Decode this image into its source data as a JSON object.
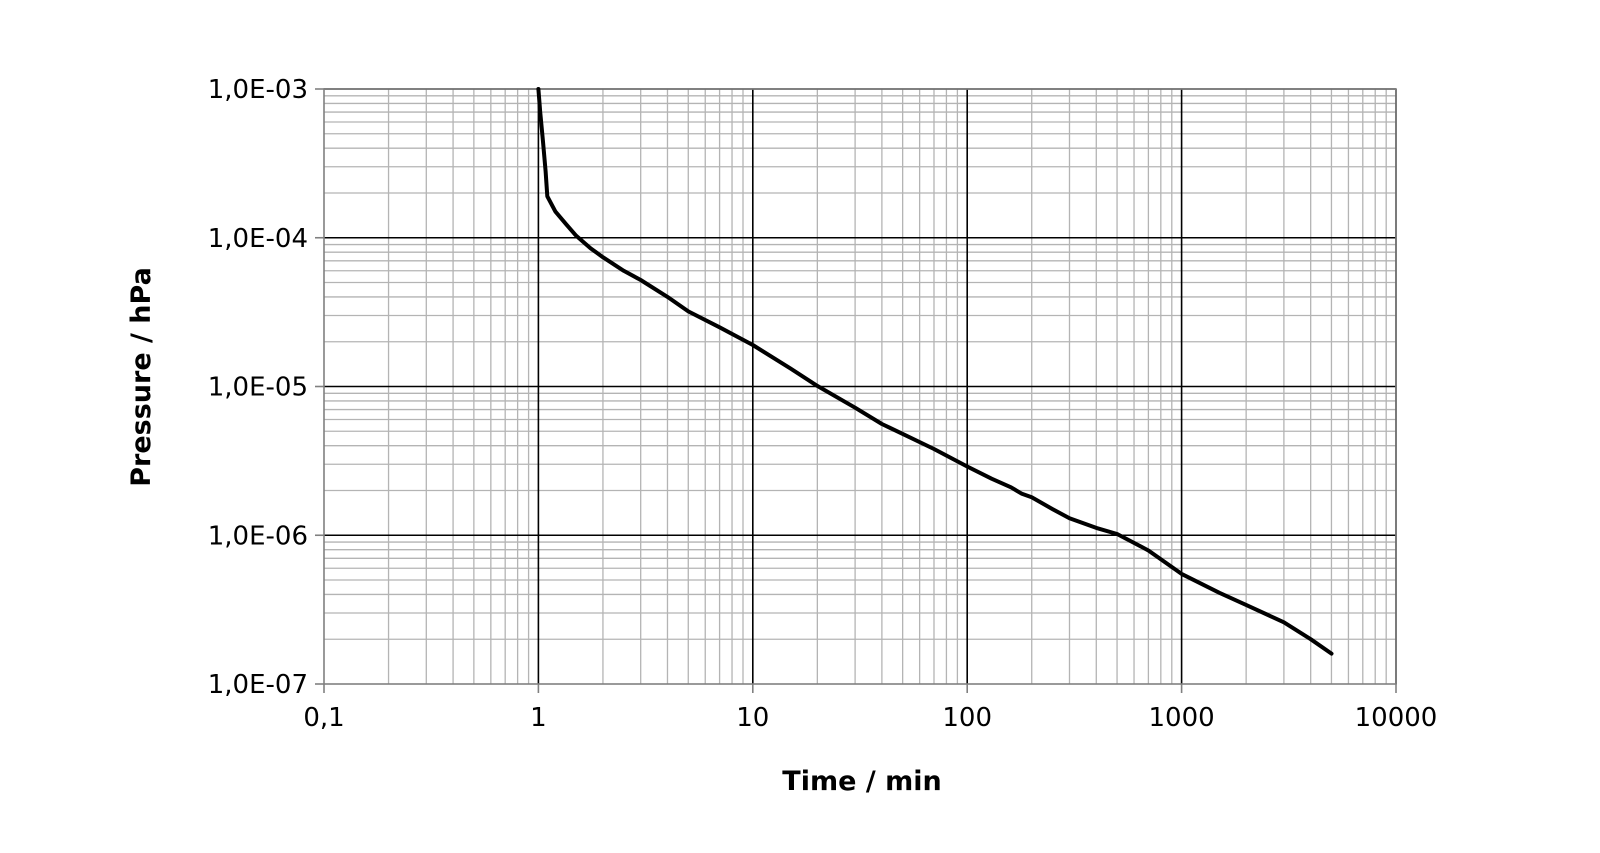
{
  "chart_data": {
    "type": "line",
    "title": "",
    "xlabel": "Time / min",
    "ylabel": "Pressure / hPa",
    "x_scale": "log",
    "y_scale": "log",
    "xlim": [
      0.1,
      10000
    ],
    "ylim": [
      1e-07,
      0.001
    ],
    "x_tick_values": [
      0.1,
      1,
      10,
      100,
      1000,
      10000
    ],
    "x_tick_labels": [
      "0,1",
      "1",
      "10",
      "100",
      "1000",
      "10000"
    ],
    "y_tick_values": [
      0.001,
      0.0001,
      1e-05,
      1e-06,
      1e-07
    ],
    "y_tick_labels": [
      "1,0E-03",
      "1,0E-04",
      "1,0E-05",
      "1,0E-06",
      "1,0E-07"
    ],
    "grid": {
      "major": true,
      "minor": true
    },
    "legend": "none",
    "colors": {
      "line": "#000000",
      "major_grid": "#000000",
      "minor_grid": "#b4b4b4",
      "axis": "#808080"
    },
    "series": [
      {
        "x": [
          1.0,
          1.02,
          1.05,
          1.08,
          1.1,
          1.2,
          1.35,
          1.5,
          1.75,
          2.0,
          2.5,
          3,
          4,
          5,
          7,
          10,
          15,
          20,
          30,
          40,
          50,
          70,
          100,
          130,
          160,
          180,
          200,
          250,
          300,
          400,
          500,
          550,
          700,
          1000,
          1500,
          2000,
          3000,
          4000,
          5000
        ],
        "y": [
          0.001,
          0.0007,
          0.00045,
          0.00028,
          0.00019,
          0.00015,
          0.000123,
          0.000103,
          8.5e-05,
          7.4e-05,
          6e-05,
          5.2e-05,
          4e-05,
          3.2e-05,
          2.5e-05,
          1.9e-05,
          1.32e-05,
          1.01e-05,
          7.2e-06,
          5.6e-06,
          4.8e-06,
          3.8e-06,
          2.9e-06,
          2.4e-06,
          2.1e-06,
          1.9e-06,
          1.8e-06,
          1.5e-06,
          1.3e-06,
          1.12e-06,
          1.02e-06,
          9.5e-07,
          7.9e-07,
          5.5e-07,
          4.1e-07,
          3.4e-07,
          2.6e-07,
          2e-07,
          1.6e-07
        ]
      }
    ]
  }
}
